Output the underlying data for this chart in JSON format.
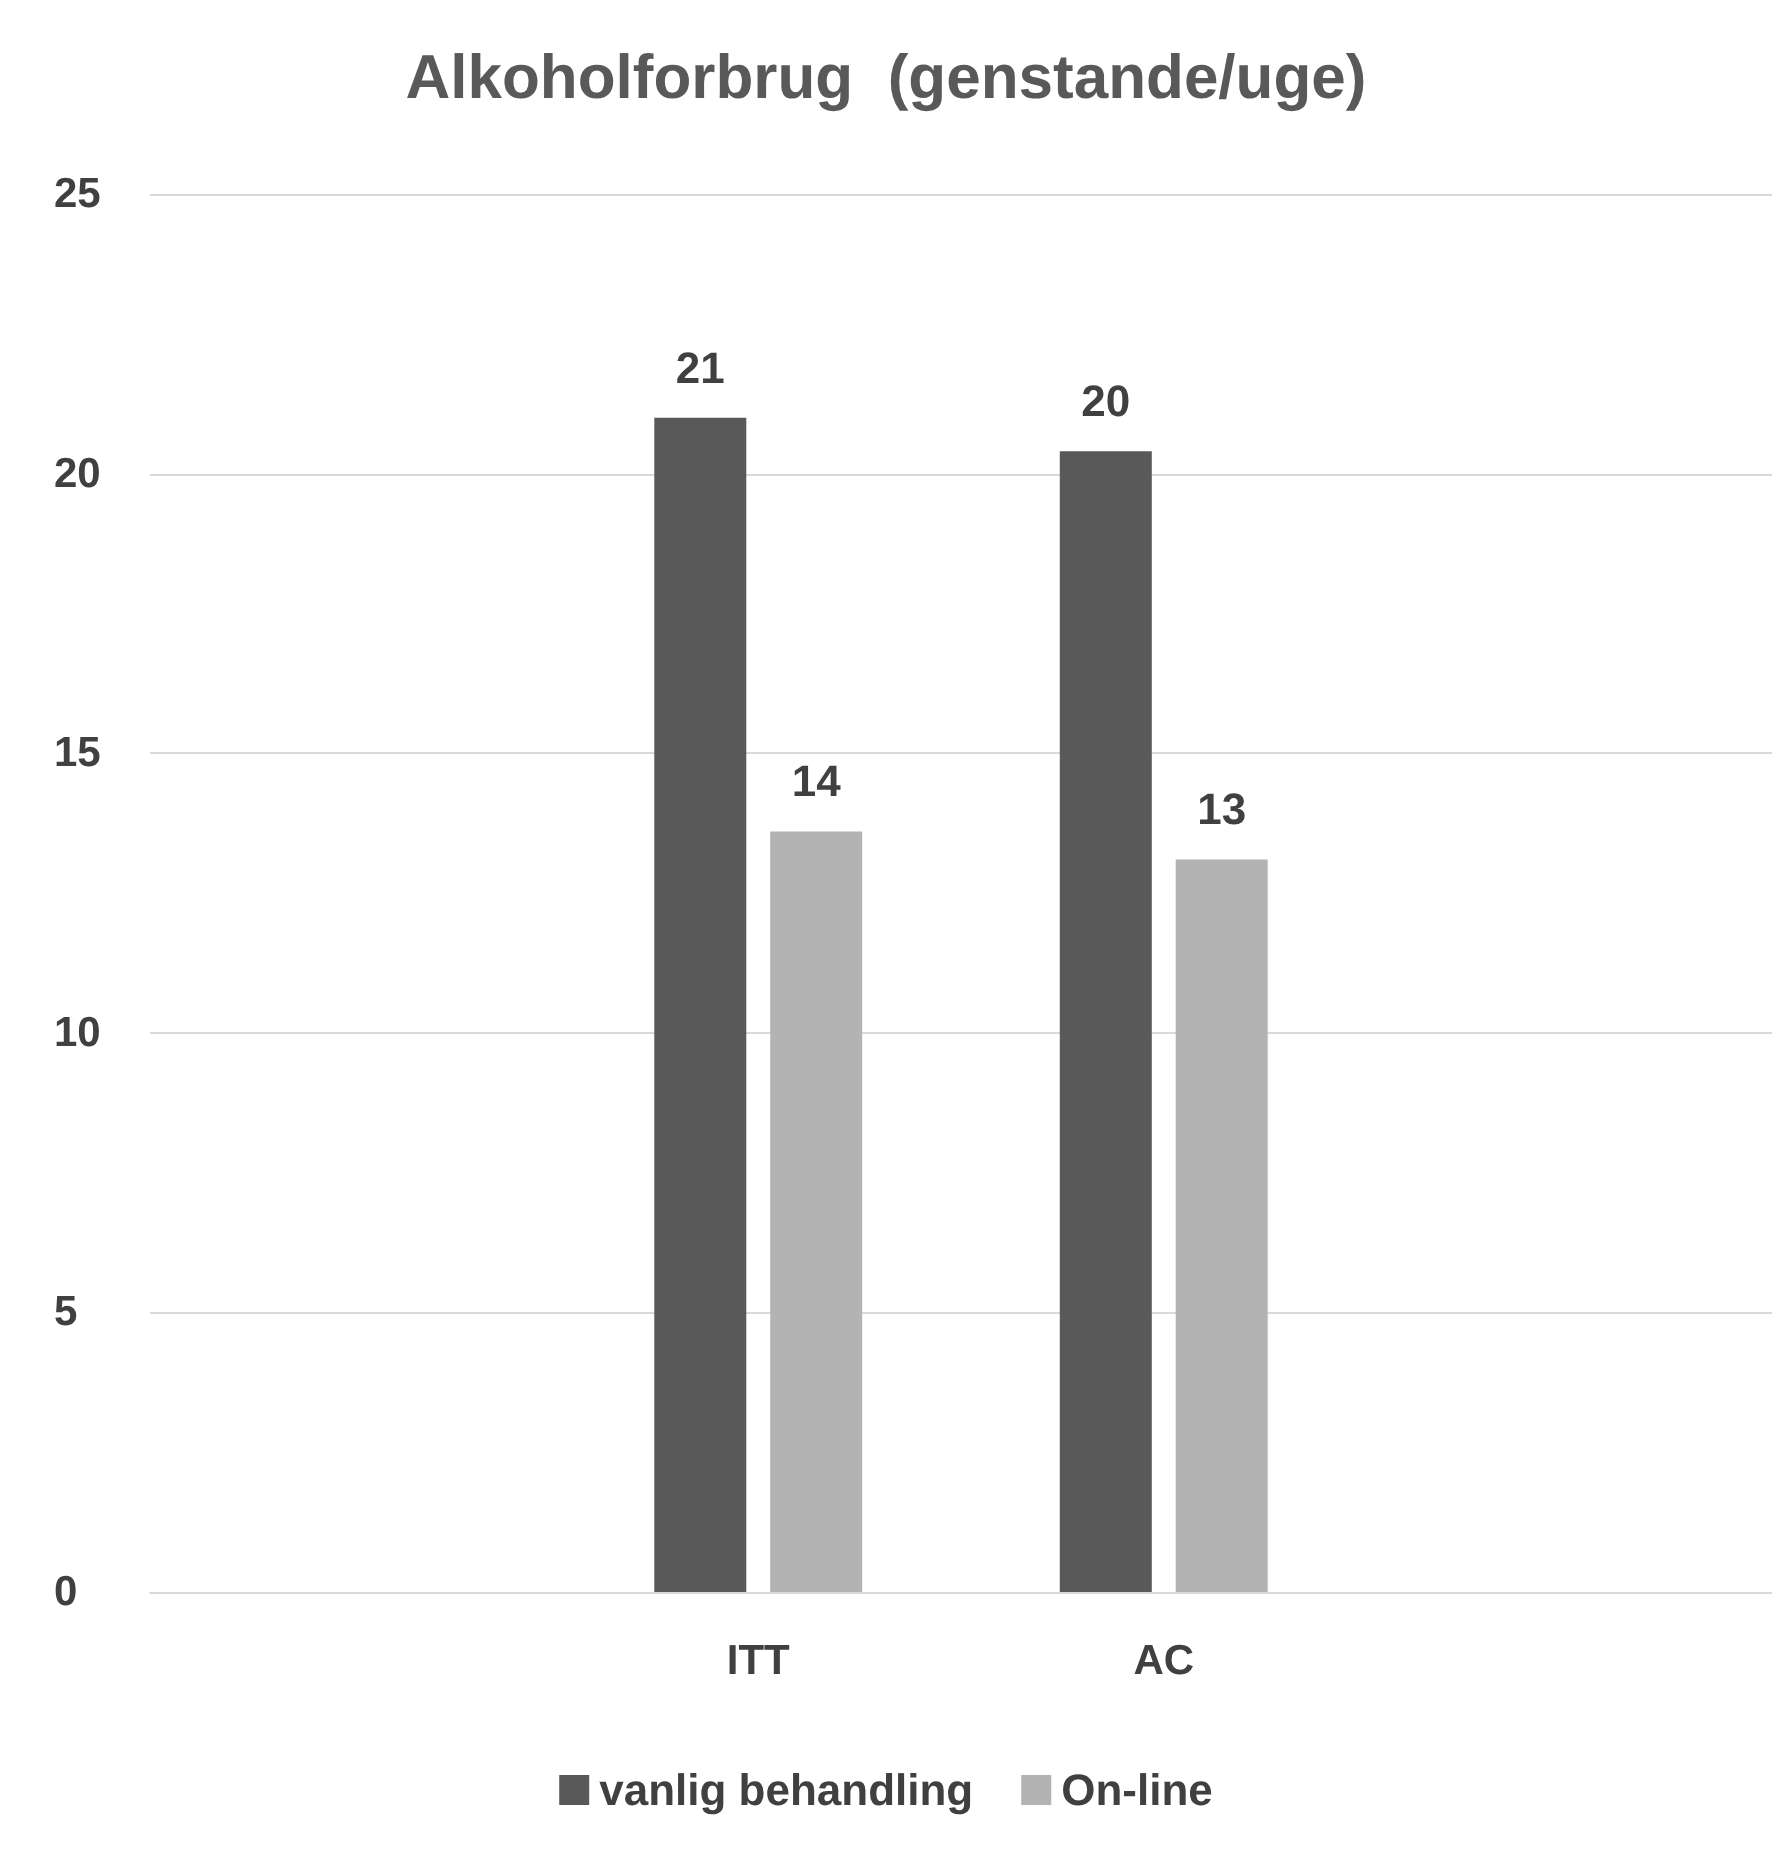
{
  "chart_data": {
    "type": "bar",
    "title": "Alkoholforbrug  (genstande/uge)",
    "categories": [
      null,
      "ITT",
      "AC",
      null
    ],
    "series": [
      {
        "name": "vanlig behandling",
        "color": "#595959",
        "values": [
          null,
          21.0,
          20.4,
          null
        ],
        "value_labels": [
          null,
          "21",
          "20",
          null
        ]
      },
      {
        "name": "On-line",
        "color": "#b3b3b3",
        "values": [
          null,
          13.6,
          13.1,
          null
        ],
        "value_labels": [
          null,
          "14",
          "13",
          null
        ]
      }
    ],
    "ylim": [
      0,
      25
    ],
    "yticks": [
      0,
      5,
      10,
      15,
      20,
      25
    ],
    "grid": "y",
    "legend": "bottom"
  }
}
